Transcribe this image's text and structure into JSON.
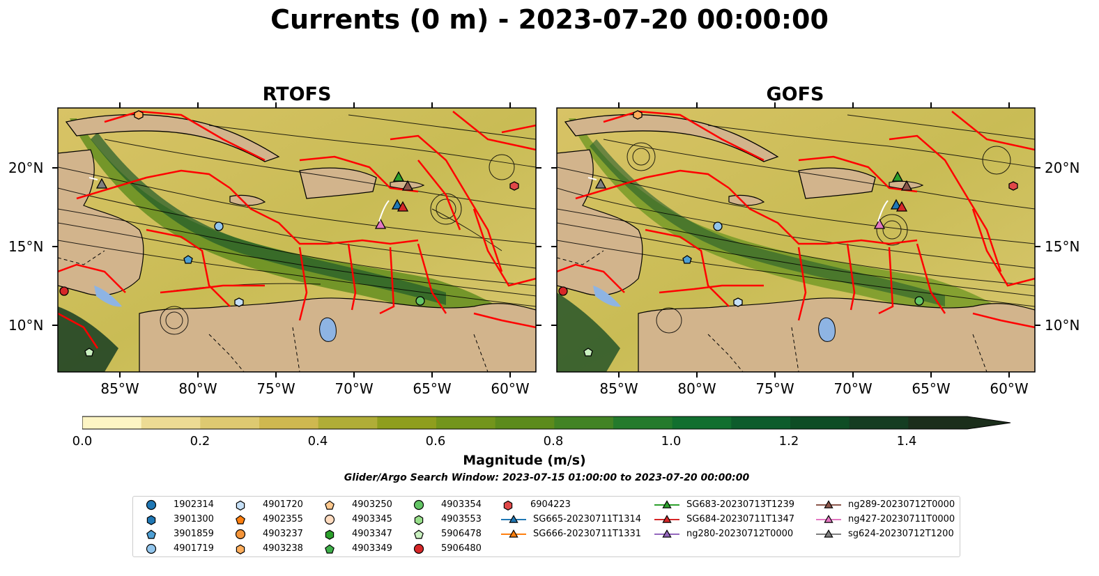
{
  "title": "Currents (0 m) - 2023-07-20 00:00:00",
  "panels": [
    {
      "title": "RTOFS"
    },
    {
      "title": "GOFS"
    }
  ],
  "lat_labels": [
    "20°N",
    "15°N",
    "10°N"
  ],
  "lon_labels": [
    "85°W",
    "80°W",
    "75°W",
    "70°W",
    "65°W",
    "60°W"
  ],
  "colorbar": {
    "label": "Magnitude (m/s)",
    "ticks": [
      "0.0",
      "0.2",
      "0.4",
      "0.6",
      "0.8",
      "1.0",
      "1.2",
      "1.4"
    ],
    "min": 0.0,
    "max": 1.6,
    "extend": "max",
    "colors": [
      "#fdf5c4",
      "#eddb94",
      "#dec971",
      "#cfb850",
      "#b0ad37",
      "#8f9e1e",
      "#73951c",
      "#5c8b1c",
      "#428324",
      "#247a2c",
      "#116f2f",
      "#0d5c2c",
      "#0e4d25",
      "#153d22",
      "#1b2e1b"
    ]
  },
  "search_window": "Glider/Argo Search Window: 2023-07-15 01:00:00 to 2023-07-20 00:00:00",
  "map_colors": {
    "land": "#d2b48c",
    "lake": "#8eb4e3",
    "eez": "#ff0000",
    "streamline": "#000000"
  },
  "legend": [
    {
      "label": "1902314",
      "marker": "circle",
      "color": "#1f77b4"
    },
    {
      "label": "3901300",
      "marker": "hexagon",
      "color": "#1f77b4"
    },
    {
      "label": "3901859",
      "marker": "pentagon",
      "color": "#4e9fd4"
    },
    {
      "label": "4901719",
      "marker": "circle",
      "color": "#92c5ec"
    },
    {
      "label": "4901720",
      "marker": "hexagon",
      "color": "#c6e0f7"
    },
    {
      "label": "4902355",
      "marker": "pentagon",
      "color": "#ff7f0e"
    },
    {
      "label": "4903237",
      "marker": "circle",
      "color": "#f4953a"
    },
    {
      "label": "4903238",
      "marker": "hexagon",
      "color": "#ffae5c"
    },
    {
      "label": "4903250",
      "marker": "pentagon",
      "color": "#ffc98e"
    },
    {
      "label": "4903345",
      "marker": "circle",
      "color": "#ffdcc0"
    },
    {
      "label": "4903347",
      "marker": "hexagon",
      "color": "#2ca02c"
    },
    {
      "label": "4903349",
      "marker": "pentagon",
      "color": "#3fb04a"
    },
    {
      "label": "4903354",
      "marker": "circle",
      "color": "#63c465"
    },
    {
      "label": "4903553",
      "marker": "hexagon",
      "color": "#98df8a"
    },
    {
      "label": "5906478",
      "marker": "pentagon",
      "color": "#c9f0c0"
    },
    {
      "label": "5906480",
      "marker": "circle",
      "color": "#d62728"
    },
    {
      "label": "6904223",
      "marker": "hexagon",
      "color": "#e04848"
    },
    {
      "label": "SG665-20230711T1314",
      "marker": "triangle",
      "color": "#1f77b4"
    },
    {
      "label": "SG666-20230711T1331",
      "marker": "triangle",
      "color": "#ff7f0e"
    },
    {
      "label": "SG683-20230713T1239",
      "marker": "triangle",
      "color": "#2ca02c"
    },
    {
      "label": "SG684-20230711T1347",
      "marker": "triangle",
      "color": "#d62728"
    },
    {
      "label": "ng280-20230712T0000",
      "marker": "triangle",
      "color": "#9467bd"
    },
    {
      "label": "ng289-20230712T0000",
      "marker": "triangle",
      "color": "#8c564b"
    },
    {
      "label": "ng427-20230711T0000",
      "marker": "triangle",
      "color": "#e377c2"
    },
    {
      "label": "sg624-20230712T1200",
      "marker": "triangle",
      "color": "#7f7f7f"
    }
  ]
}
